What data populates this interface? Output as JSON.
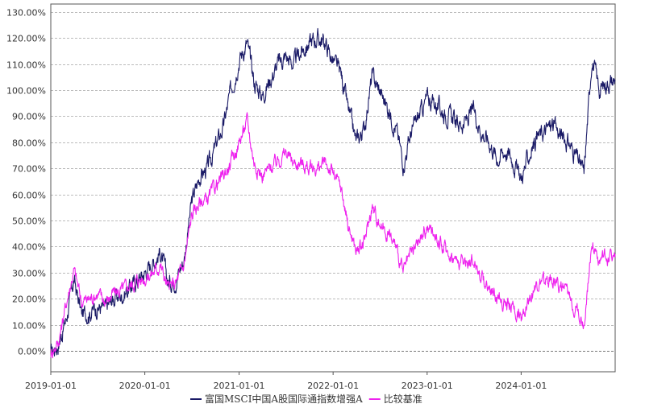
{
  "chart_data": {
    "type": "line",
    "title": "",
    "xlabel": "",
    "ylabel": "",
    "x_ticks": [
      "2019-01-01",
      "2020-01-01",
      "2021-01-01",
      "2022-01-01",
      "2023-01-01",
      "2024-01-01"
    ],
    "y_ticks": [
      "0.00%",
      "10.00%",
      "20.00%",
      "30.00%",
      "40.00%",
      "50.00%",
      "60.00%",
      "70.00%",
      "80.00%",
      "90.00%",
      "100.00%",
      "110.00%",
      "120.00%",
      "130.00%"
    ],
    "x_range": [
      "2019-01-01",
      "2024-12-31"
    ],
    "ylim": [
      -8,
      133
    ],
    "grid": "horizontal dashed",
    "legend_position": "bottom-center",
    "series": [
      {
        "name": "富国MSCI中国A股国际通指数增强A",
        "color": "#1a1a66",
        "points": [
          [
            "2019-01-01",
            -1
          ],
          [
            "2019-02-01",
            3
          ],
          [
            "2019-03-01",
            12
          ],
          [
            "2019-04-01",
            27
          ],
          [
            "2019-05-01",
            14
          ],
          [
            "2019-06-01",
            15
          ],
          [
            "2019-07-01",
            17
          ],
          [
            "2019-08-01",
            16
          ],
          [
            "2019-09-01",
            20
          ],
          [
            "2019-10-01",
            21
          ],
          [
            "2019-11-01",
            24
          ],
          [
            "2019-12-01",
            27
          ],
          [
            "2020-01-01",
            30
          ],
          [
            "2020-02-01",
            34
          ],
          [
            "2020-03-01",
            38
          ],
          [
            "2020-04-01",
            26
          ],
          [
            "2020-05-01",
            28
          ],
          [
            "2020-06-01",
            35
          ],
          [
            "2020-07-01",
            57
          ],
          [
            "2020-08-01",
            67
          ],
          [
            "2020-09-01",
            70
          ],
          [
            "2020-10-01",
            78
          ],
          [
            "2020-11-01",
            86
          ],
          [
            "2020-12-01",
            100
          ],
          [
            "2021-01-01",
            112
          ],
          [
            "2021-02-01",
            118
          ],
          [
            "2021-03-01",
            103
          ],
          [
            "2021-04-01",
            98
          ],
          [
            "2021-05-01",
            104
          ],
          [
            "2021-06-01",
            110
          ],
          [
            "2021-07-01",
            113
          ],
          [
            "2021-08-01",
            110
          ],
          [
            "2021-09-01",
            115
          ],
          [
            "2021-10-01",
            118
          ],
          [
            "2021-11-01",
            120
          ],
          [
            "2021-12-01",
            118
          ],
          [
            "2022-01-01",
            111
          ],
          [
            "2022-02-01",
            106
          ],
          [
            "2022-03-01",
            92
          ],
          [
            "2022-04-01",
            80
          ],
          [
            "2022-05-01",
            85
          ],
          [
            "2022-06-01",
            105
          ],
          [
            "2022-07-01",
            100
          ],
          [
            "2022-08-01",
            93
          ],
          [
            "2022-09-01",
            86
          ],
          [
            "2022-10-01",
            72
          ],
          [
            "2022-11-01",
            84
          ],
          [
            "2022-12-01",
            90
          ],
          [
            "2023-01-01",
            97
          ],
          [
            "2023-02-01",
            95
          ],
          [
            "2023-03-01",
            92
          ],
          [
            "2023-04-01",
            90
          ],
          [
            "2023-05-01",
            87
          ],
          [
            "2023-06-01",
            88
          ],
          [
            "2023-07-01",
            92
          ],
          [
            "2023-08-01",
            84
          ],
          [
            "2023-09-01",
            80
          ],
          [
            "2023-10-01",
            74
          ],
          [
            "2023-11-01",
            77
          ],
          [
            "2023-12-01",
            73
          ],
          [
            "2024-01-01",
            66
          ],
          [
            "2024-02-01",
            75
          ],
          [
            "2024-03-01",
            82
          ],
          [
            "2024-04-01",
            84
          ],
          [
            "2024-05-01",
            87
          ],
          [
            "2024-06-01",
            83
          ],
          [
            "2024-07-01",
            80
          ],
          [
            "2024-08-01",
            75
          ],
          [
            "2024-09-01",
            68
          ],
          [
            "2024-10-01",
            112
          ],
          [
            "2024-11-01",
            100
          ],
          [
            "2024-12-01",
            103
          ],
          [
            "2024-12-31",
            104
          ]
        ]
      },
      {
        "name": "比较基准",
        "color": "#ee22ee",
        "points": [
          [
            "2019-01-01",
            -1
          ],
          [
            "2019-02-01",
            4
          ],
          [
            "2019-03-01",
            18
          ],
          [
            "2019-04-01",
            31
          ],
          [
            "2019-05-01",
            19
          ],
          [
            "2019-06-01",
            20
          ],
          [
            "2019-07-01",
            22
          ],
          [
            "2019-08-01",
            19
          ],
          [
            "2019-09-01",
            22
          ],
          [
            "2019-10-01",
            23
          ],
          [
            "2019-11-01",
            25
          ],
          [
            "2019-12-01",
            27
          ],
          [
            "2020-01-01",
            28
          ],
          [
            "2020-02-01",
            30
          ],
          [
            "2020-03-01",
            33
          ],
          [
            "2020-04-01",
            24
          ],
          [
            "2020-05-01",
            26
          ],
          [
            "2020-06-01",
            33
          ],
          [
            "2020-07-01",
            52
          ],
          [
            "2020-08-01",
            57
          ],
          [
            "2020-09-01",
            58
          ],
          [
            "2020-10-01",
            63
          ],
          [
            "2020-11-01",
            67
          ],
          [
            "2020-12-01",
            72
          ],
          [
            "2021-01-01",
            80
          ],
          [
            "2021-02-01",
            88
          ],
          [
            "2021-03-01",
            72
          ],
          [
            "2021-04-01",
            67
          ],
          [
            "2021-05-01",
            70
          ],
          [
            "2021-06-01",
            73
          ],
          [
            "2021-07-01",
            76
          ],
          [
            "2021-08-01",
            72
          ],
          [
            "2021-09-01",
            72
          ],
          [
            "2021-10-01",
            70
          ],
          [
            "2021-11-01",
            70
          ],
          [
            "2021-12-01",
            72
          ],
          [
            "2022-01-01",
            68
          ],
          [
            "2022-02-01",
            62
          ],
          [
            "2022-03-01",
            48
          ],
          [
            "2022-04-01",
            38
          ],
          [
            "2022-05-01",
            41
          ],
          [
            "2022-06-01",
            55
          ],
          [
            "2022-07-01",
            49
          ],
          [
            "2022-08-01",
            45
          ],
          [
            "2022-09-01",
            40
          ],
          [
            "2022-10-01",
            30
          ],
          [
            "2022-11-01",
            37
          ],
          [
            "2022-12-01",
            42
          ],
          [
            "2023-01-01",
            47
          ],
          [
            "2023-02-01",
            45
          ],
          [
            "2023-03-01",
            40
          ],
          [
            "2023-04-01",
            37
          ],
          [
            "2023-05-01",
            34
          ],
          [
            "2023-06-01",
            34
          ],
          [
            "2023-07-01",
            35
          ],
          [
            "2023-08-01",
            28
          ],
          [
            "2023-09-01",
            24
          ],
          [
            "2023-10-01",
            20
          ],
          [
            "2023-11-01",
            18
          ],
          [
            "2023-12-01",
            17
          ],
          [
            "2024-01-01",
            12
          ],
          [
            "2024-02-01",
            21
          ],
          [
            "2024-03-01",
            25
          ],
          [
            "2024-04-01",
            26
          ],
          [
            "2024-05-01",
            28
          ],
          [
            "2024-06-01",
            25
          ],
          [
            "2024-07-01",
            21
          ],
          [
            "2024-08-01",
            17
          ],
          [
            "2024-09-01",
            10
          ],
          [
            "2024-10-01",
            42
          ],
          [
            "2024-11-01",
            34
          ],
          [
            "2024-12-01",
            36
          ],
          [
            "2024-12-31",
            37
          ]
        ]
      }
    ]
  }
}
